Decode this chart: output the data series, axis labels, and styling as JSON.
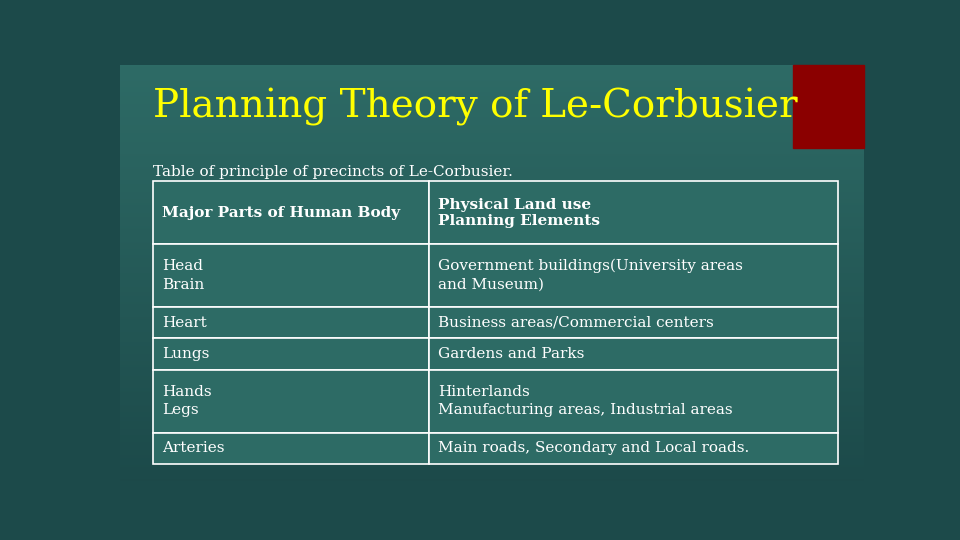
{
  "title": "Planning Theory of Le-Corbusier",
  "subtitle": "Table of principle of precincts of Le-Corbusier.",
  "title_color": "#FFFF00",
  "subtitle_color": "#FFFFFF",
  "text_color": "#FFFFFF",
  "bg_top": "#1C4A4A",
  "bg_bottom": "#1A3A3A",
  "table_bg": "#2D6B65",
  "table_border_color": "#FFFFFF",
  "red_rect_color": "#8B0000",
  "col1_header": "Major Parts of Human Body",
  "col2_header": "Physical Land use\nPlanning Elements",
  "rows": [
    [
      "Head\nBrain",
      "Government buildings(University areas\nand Museum)"
    ],
    [
      "Heart",
      "Business areas/Commercial centers"
    ],
    [
      "Lungs",
      "Gardens and Parks"
    ],
    [
      "Hands\nLegs",
      "Hinterlands\nManufacturing areas, Industrial areas"
    ],
    [
      "Arteries",
      "Main roads, Secondary and Local roads."
    ]
  ]
}
